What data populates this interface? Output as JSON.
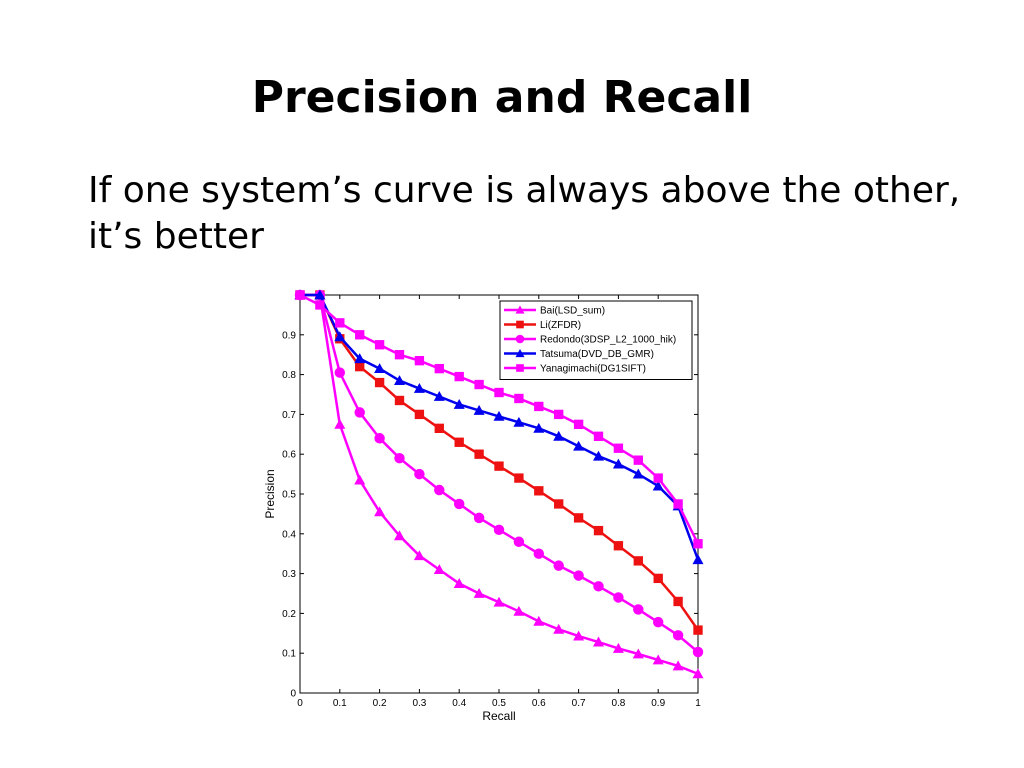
{
  "slide": {
    "title": "Precision and Recall",
    "body_lines": [
      "If one system’s curve is always above the other,",
      "it’s better"
    ]
  },
  "chart_data": {
    "type": "line",
    "xlabel": "Recall",
    "ylabel": "Precision",
    "xlim": [
      0,
      1
    ],
    "ylim": [
      0,
      1
    ],
    "xticks": [
      0,
      0.1,
      0.2,
      0.3,
      0.4,
      0.5,
      0.6,
      0.7,
      0.8,
      0.9,
      1
    ],
    "xtick_labels": [
      "0",
      "0.1",
      "0.2",
      "0.3",
      "0.4",
      "0.5",
      "0.6",
      "0.7",
      "0.8",
      "0.9",
      "1"
    ],
    "yticks": [
      0,
      0.1,
      0.2,
      0.3,
      0.4,
      0.5,
      0.6,
      0.7,
      0.8,
      0.9
    ],
    "ytick_labels": [
      "0",
      "0.1",
      "0.2",
      "0.3",
      "0.4",
      "0.5",
      "0.6",
      "0.7",
      "0.8",
      "0.9"
    ],
    "grid": false,
    "legend_position": "top-right",
    "x": [
      0,
      0.05,
      0.1,
      0.15,
      0.2,
      0.25,
      0.3,
      0.35,
      0.4,
      0.45,
      0.5,
      0.55,
      0.6,
      0.65,
      0.7,
      0.75,
      0.8,
      0.85,
      0.9,
      0.95,
      1
    ],
    "series": [
      {
        "name": "Bai(LSD_sum)",
        "color": "#ff00ff",
        "marker": "triangle",
        "values": [
          1.0,
          1.0,
          0.675,
          0.535,
          0.455,
          0.395,
          0.345,
          0.31,
          0.275,
          0.25,
          0.228,
          0.205,
          0.18,
          0.16,
          0.143,
          0.128,
          0.112,
          0.098,
          0.083,
          0.068,
          0.048
        ]
      },
      {
        "name": "Li(ZFDR)",
        "color": "#ee1111",
        "marker": "square",
        "values": [
          1.0,
          1.0,
          0.89,
          0.82,
          0.78,
          0.735,
          0.7,
          0.665,
          0.63,
          0.6,
          0.57,
          0.54,
          0.508,
          0.475,
          0.44,
          0.408,
          0.37,
          0.332,
          0.288,
          0.23,
          0.158
        ]
      },
      {
        "name": "Redondo(3DSP_L2_1000_hik)",
        "color": "#ff00ff",
        "marker": "circle",
        "values": [
          1.0,
          1.0,
          0.805,
          0.705,
          0.64,
          0.59,
          0.55,
          0.51,
          0.475,
          0.44,
          0.41,
          0.38,
          0.35,
          0.32,
          0.295,
          0.268,
          0.24,
          0.21,
          0.178,
          0.145,
          0.103
        ]
      },
      {
        "name": "Tatsuma(DVD_DB_GMR)",
        "color": "#0000ee",
        "marker": "triangle",
        "values": [
          1.0,
          1.0,
          0.895,
          0.84,
          0.815,
          0.785,
          0.765,
          0.745,
          0.725,
          0.71,
          0.695,
          0.68,
          0.665,
          0.645,
          0.62,
          0.595,
          0.575,
          0.55,
          0.52,
          0.47,
          0.335
        ]
      },
      {
        "name": "Yanagimachi(DG1SIFT)",
        "color": "#ff00ff",
        "marker": "square",
        "values": [
          1.0,
          0.975,
          0.93,
          0.9,
          0.875,
          0.85,
          0.835,
          0.815,
          0.795,
          0.775,
          0.755,
          0.74,
          0.72,
          0.7,
          0.675,
          0.645,
          0.615,
          0.585,
          0.54,
          0.475,
          0.375
        ]
      }
    ]
  }
}
